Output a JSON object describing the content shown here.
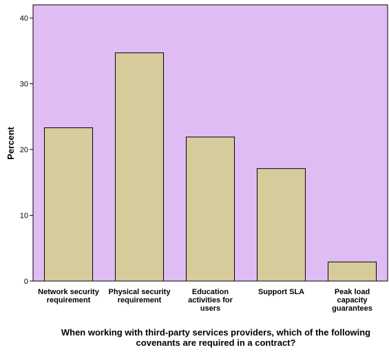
{
  "chart_data": {
    "type": "bar",
    "categories": [
      "Network security requirement",
      "Physical security requirement",
      "Education activities for users",
      "Support SLA",
      "Peak load capacity guarantees"
    ],
    "category_label_lines": [
      [
        "Network security",
        "requirement"
      ],
      [
        "Physical security",
        "requirement"
      ],
      [
        "Education",
        "activities for",
        "users"
      ],
      [
        "Support SLA"
      ],
      [
        "Peak load",
        "capacity",
        "guarantees"
      ]
    ],
    "values": [
      23.3,
      34.7,
      21.9,
      17.1,
      2.9
    ],
    "ylabel": "Percent",
    "xlabel_lines": [
      "When working with third-party services providers, which of the following",
      "covenants are required in a contract?"
    ],
    "ylim": [
      0,
      42
    ],
    "yticks": [
      0,
      10,
      20,
      30,
      40
    ],
    "grid": false,
    "legend": "none",
    "colors": {
      "plot_background": "#e0bcf4",
      "bar_fill": "#d6cc9b",
      "bar_stroke": "#000000"
    }
  }
}
